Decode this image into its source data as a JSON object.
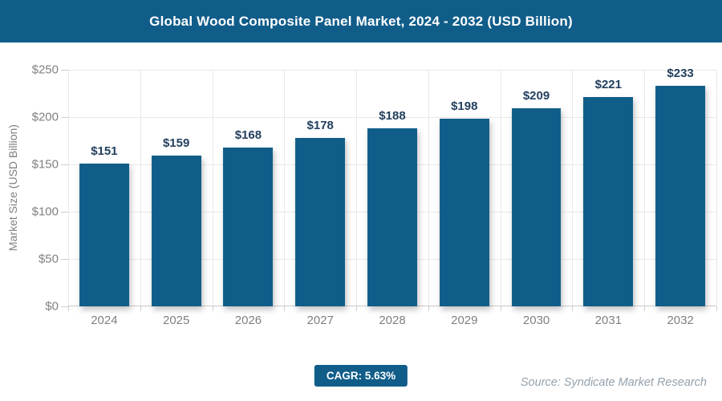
{
  "header": {
    "title": "Global Wood Composite Panel Market, 2024 - 2032 (USD Billion)"
  },
  "chart_data": {
    "type": "bar",
    "title": "Global Wood Composite Panel Market, 2024 - 2032 (USD Billion)",
    "categories": [
      "2024",
      "2025",
      "2026",
      "2027",
      "2028",
      "2029",
      "2030",
      "2031",
      "2032"
    ],
    "values": [
      151,
      159,
      168,
      178,
      188,
      198,
      209,
      221,
      233
    ],
    "value_labels": [
      "$151",
      "$159",
      "$168",
      "$178",
      "$188",
      "$198",
      "$209",
      "$221",
      "$233"
    ],
    "xlabel": "",
    "ylabel": "Market Size (USD Billion)",
    "ylim": [
      0,
      250
    ],
    "ytick_values": [
      0,
      50,
      100,
      150,
      200,
      250
    ],
    "ytick_labels": [
      "$0",
      "$50",
      "$100",
      "$150",
      "$200",
      "$250"
    ],
    "grid": true,
    "legend": "none",
    "bar_color": "#115d8a",
    "value_label_color": "#24405f"
  },
  "footer": {
    "cagr_label": "CAGR: 5.63%",
    "source": "Source: Syndicate Market Research"
  },
  "colors": {
    "accent": "#115d8a",
    "axis_text": "#808080",
    "grid": "#e9e9e9",
    "source_text": "#94a1ac"
  }
}
